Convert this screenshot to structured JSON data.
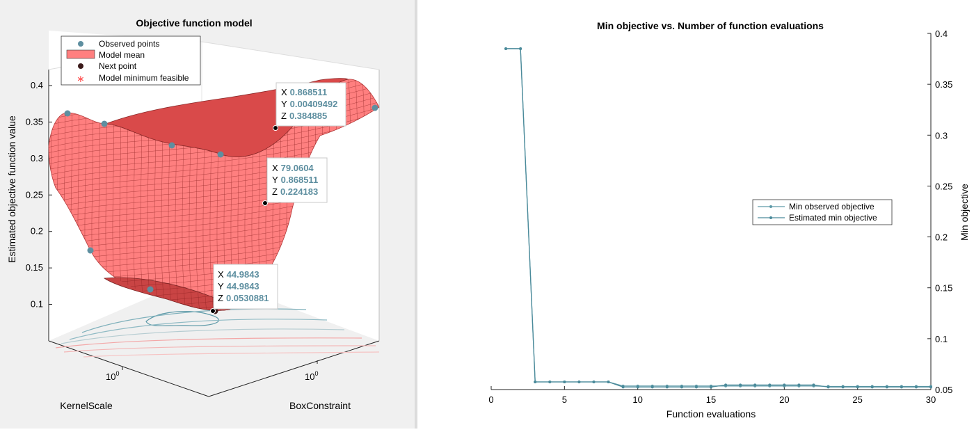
{
  "chart_data": [
    {
      "type": "surface3d",
      "title": "Objective function model",
      "zlabel": "Estimated objective function value",
      "xlabel": "KernelScale",
      "ylabel": "BoxConstraint",
      "x_tick": "10",
      "x_tick_exp": "0",
      "y_tick": "10",
      "y_tick_exp": "0",
      "zticks": [
        "0.1",
        "0.15",
        "0.2",
        "0.25",
        "0.3",
        "0.35",
        "0.4"
      ],
      "zlim": [
        0.05,
        0.42
      ],
      "legend": {
        "placement": "top-left",
        "entries": [
          "Observed points",
          "Model mean",
          "Next point",
          "Model minimum feasible"
        ]
      },
      "datatips": [
        {
          "x_label": "X",
          "x": "0.868511",
          "y_label": "Y",
          "y": "0.00409492",
          "z_label": "Z",
          "z": "0.384885"
        },
        {
          "x_label": "X",
          "x": "79.0604",
          "y_label": "Y",
          "y": "0.868511",
          "z_label": "Z",
          "z": "0.224183"
        },
        {
          "x_label": "X",
          "x": "44.9843",
          "y_label": "Y",
          "y": "44.9843",
          "z_label": "Z",
          "z": "0.0530881"
        }
      ],
      "colors": {
        "surface": "#ff7b7b",
        "observed": "#5e8fa0",
        "next": "#3a1a1a",
        "min_feasible": "#ff5050"
      }
    },
    {
      "type": "line",
      "title": "Min objective vs. Number of function evaluations",
      "xlabel": "Function evaluations",
      "ylabel": "Min objective",
      "xlim": [
        0,
        30
      ],
      "ylim": [
        0.05,
        0.4
      ],
      "xticks": [
        0,
        5,
        10,
        15,
        20,
        25,
        30
      ],
      "yticks": [
        0.05,
        0.1,
        0.15,
        0.2,
        0.25,
        0.3,
        0.35,
        0.4
      ],
      "legend": {
        "placement": "center-right"
      },
      "series": [
        {
          "name": "Min observed objective",
          "color": "#5e9aa8",
          "x": [
            1,
            2,
            3,
            4,
            5,
            6,
            7,
            8,
            9,
            10,
            11,
            12,
            13,
            14,
            15,
            16,
            17,
            18,
            19,
            20,
            21,
            22,
            23,
            24,
            25,
            26,
            27,
            28,
            29,
            30
          ],
          "y": [
            0.385,
            0.385,
            0.0575,
            0.0575,
            0.0575,
            0.0575,
            0.0575,
            0.0575,
            0.0535,
            0.0535,
            0.0535,
            0.0535,
            0.0535,
            0.0535,
            0.0535,
            0.0535,
            0.0535,
            0.0535,
            0.0535,
            0.0535,
            0.0535,
            0.0535,
            0.0531,
            0.0531,
            0.0531,
            0.0531,
            0.0531,
            0.0531,
            0.0531,
            0.0531
          ]
        },
        {
          "name": "Estimated min objective",
          "color": "#4a8a9a",
          "x": [
            1,
            2,
            3,
            4,
            5,
            6,
            7,
            8,
            9,
            10,
            11,
            12,
            13,
            14,
            15,
            16,
            17,
            18,
            19,
            20,
            21,
            22,
            23,
            24,
            25,
            26,
            27,
            28,
            29,
            30
          ],
          "y": [
            0.385,
            0.385,
            0.0575,
            0.0575,
            0.0575,
            0.0575,
            0.0575,
            0.0575,
            0.0525,
            0.0525,
            0.0525,
            0.0525,
            0.0525,
            0.0525,
            0.0525,
            0.0545,
            0.0545,
            0.0545,
            0.0545,
            0.0545,
            0.0545,
            0.0545,
            0.0525,
            0.0525,
            0.0525,
            0.0525,
            0.0525,
            0.0525,
            0.0525,
            0.0525
          ]
        }
      ]
    }
  ]
}
